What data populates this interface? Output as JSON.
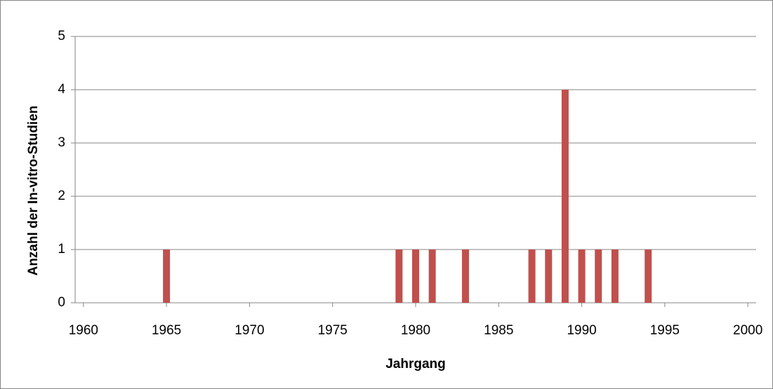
{
  "chart_data": {
    "type": "bar",
    "x": [
      1965,
      1979,
      1980,
      1981,
      1983,
      1987,
      1988,
      1989,
      1990,
      1991,
      1992,
      1994
    ],
    "values": [
      1,
      1,
      1,
      1,
      1,
      1,
      1,
      4,
      1,
      1,
      1,
      1
    ],
    "color": "#c0504d",
    "xlabel": "Jahrgang",
    "ylabel": "Anzahl der In-vitro-Studien",
    "xlim": [
      1959.5,
      2000.5
    ],
    "xticks": [
      1960,
      1965,
      1970,
      1975,
      1980,
      1985,
      1990,
      1995,
      2000
    ],
    "ylim": [
      0,
      5
    ],
    "yticks": [
      0,
      1,
      2,
      3,
      4,
      5
    ],
    "grid": true
  }
}
